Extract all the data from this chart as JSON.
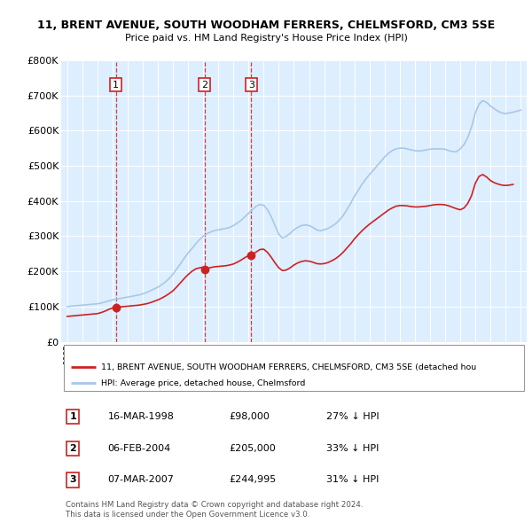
{
  "title": "11, BRENT AVENUE, SOUTH WOODHAM FERRERS, CHELMSFORD, CM3 5SE",
  "subtitle": "Price paid vs. HM Land Registry's House Price Index (HPI)",
  "sales": [
    {
      "label": "1",
      "date": 1998.21,
      "price": 98000,
      "text_date": "16-MAR-1998",
      "text_price": "£98,000",
      "text_hpi": "27% ↓ HPI"
    },
    {
      "label": "2",
      "date": 2004.09,
      "price": 205000,
      "text_date": "06-FEB-2004",
      "text_price": "£205,000",
      "text_hpi": "33% ↓ HPI"
    },
    {
      "label": "3",
      "date": 2007.18,
      "price": 244995,
      "text_date": "07-MAR-2007",
      "text_price": "£244,995",
      "text_hpi": "31% ↓ HPI"
    }
  ],
  "hpi_line_color": "#a8c8e8",
  "price_line_color": "#cc2222",
  "vline_color": "#cc2222",
  "bg_color": "#ddeeff",
  "legend_label_red": "11, BRENT AVENUE, SOUTH WOODHAM FERRERS, CHELMSFORD, CM3 5SE (detached hou",
  "legend_label_blue": "HPI: Average price, detached house, Chelmsford",
  "footer1": "Contains HM Land Registry data © Crown copyright and database right 2024.",
  "footer2": "This data is licensed under the Open Government Licence v3.0.",
  "ylim": [
    0,
    800000
  ],
  "yticks": [
    0,
    100000,
    200000,
    300000,
    400000,
    500000,
    600000,
    700000,
    800000
  ],
  "hpi_x": [
    1995,
    1995.25,
    1995.5,
    1995.75,
    1996,
    1996.25,
    1996.5,
    1996.75,
    1997,
    1997.25,
    1997.5,
    1997.75,
    1998,
    1998.25,
    1998.5,
    1998.75,
    1999,
    1999.25,
    1999.5,
    1999.75,
    2000,
    2000.25,
    2000.5,
    2000.75,
    2001,
    2001.25,
    2001.5,
    2001.75,
    2002,
    2002.25,
    2002.5,
    2002.75,
    2003,
    2003.25,
    2003.5,
    2003.75,
    2004,
    2004.25,
    2004.5,
    2004.75,
    2005,
    2005.25,
    2005.5,
    2005.75,
    2006,
    2006.25,
    2006.5,
    2006.75,
    2007,
    2007.25,
    2007.5,
    2007.75,
    2008,
    2008.25,
    2008.5,
    2008.75,
    2009,
    2009.25,
    2009.5,
    2009.75,
    2010,
    2010.25,
    2010.5,
    2010.75,
    2011,
    2011.25,
    2011.5,
    2011.75,
    2012,
    2012.25,
    2012.5,
    2012.75,
    2013,
    2013.25,
    2013.5,
    2013.75,
    2014,
    2014.25,
    2014.5,
    2014.75,
    2015,
    2015.25,
    2015.5,
    2015.75,
    2016,
    2016.25,
    2016.5,
    2016.75,
    2017,
    2017.25,
    2017.5,
    2017.75,
    2018,
    2018.25,
    2018.5,
    2018.75,
    2019,
    2019.25,
    2019.5,
    2019.75,
    2020,
    2020.25,
    2020.5,
    2020.75,
    2021,
    2021.25,
    2021.5,
    2021.75,
    2022,
    2022.25,
    2022.5,
    2022.75,
    2023,
    2023.25,
    2023.5,
    2023.75,
    2024,
    2024.25,
    2024.5,
    2024.75,
    2025
  ],
  "hpi_y": [
    100000,
    101000,
    102000,
    103000,
    104000,
    105000,
    106000,
    107000,
    108000,
    110000,
    113000,
    116000,
    119000,
    121000,
    123000,
    125000,
    127000,
    129000,
    131000,
    133000,
    136000,
    140000,
    145000,
    150000,
    155000,
    162000,
    170000,
    180000,
    192000,
    207000,
    222000,
    238000,
    252000,
    265000,
    278000,
    290000,
    300000,
    307000,
    312000,
    316000,
    318000,
    320000,
    322000,
    325000,
    330000,
    337000,
    345000,
    355000,
    365000,
    375000,
    385000,
    390000,
    388000,
    375000,
    355000,
    330000,
    305000,
    295000,
    300000,
    308000,
    318000,
    325000,
    330000,
    332000,
    330000,
    325000,
    318000,
    315000,
    318000,
    322000,
    328000,
    335000,
    345000,
    358000,
    375000,
    393000,
    413000,
    430000,
    447000,
    462000,
    475000,
    487000,
    500000,
    512000,
    525000,
    535000,
    543000,
    548000,
    550000,
    550000,
    548000,
    545000,
    543000,
    542000,
    543000,
    545000,
    547000,
    548000,
    548000,
    548000,
    547000,
    543000,
    540000,
    540000,
    548000,
    560000,
    580000,
    610000,
    650000,
    675000,
    685000,
    680000,
    670000,
    662000,
    655000,
    650000,
    648000,
    650000,
    652000,
    655000,
    658000
  ],
  "red_x": [
    1995,
    1995.25,
    1995.5,
    1995.75,
    1996,
    1996.25,
    1996.5,
    1996.75,
    1997,
    1997.25,
    1997.5,
    1997.75,
    1998,
    1998.21,
    1998.21,
    1998.5,
    1998.75,
    1999,
    1999.25,
    1999.5,
    1999.75,
    2000,
    2000.25,
    2000.5,
    2000.75,
    2001,
    2001.25,
    2001.5,
    2001.75,
    2002,
    2002.25,
    2002.5,
    2002.75,
    2003,
    2003.25,
    2003.5,
    2003.75,
    2004,
    2004.09,
    2004.09,
    2004.25,
    2004.5,
    2004.75,
    2005,
    2005.25,
    2005.5,
    2005.75,
    2006,
    2006.25,
    2006.5,
    2006.75,
    2007,
    2007.18,
    2007.18,
    2007.25,
    2007.5,
    2007.75,
    2008,
    2008.25,
    2008.5,
    2008.75,
    2009,
    2009.25,
    2009.5,
    2009.75,
    2010,
    2010.25,
    2010.5,
    2010.75,
    2011,
    2011.25,
    2011.5,
    2011.75,
    2012,
    2012.25,
    2012.5,
    2012.75,
    2013,
    2013.25,
    2013.5,
    2013.75,
    2014,
    2014.25,
    2014.5,
    2014.75,
    2015,
    2015.25,
    2015.5,
    2015.75,
    2016,
    2016.25,
    2016.5,
    2016.75,
    2017,
    2017.25,
    2017.5,
    2017.75,
    2018,
    2018.25,
    2018.5,
    2018.75,
    2019,
    2019.25,
    2019.5,
    2019.75,
    2020,
    2020.25,
    2020.5,
    2020.75,
    2021,
    2021.25,
    2021.5,
    2021.75,
    2022,
    2022.25,
    2022.5,
    2022.75,
    2023,
    2023.25,
    2023.5,
    2023.75,
    2024,
    2024.25,
    2024.5
  ],
  "red_y": [
    72000,
    73000,
    74000,
    75000,
    76000,
    77000,
    78000,
    79000,
    80000,
    83000,
    87000,
    92000,
    96000,
    98000,
    98000,
    99000,
    100000,
    101000,
    102000,
    103000,
    104000,
    106000,
    108000,
    111000,
    115000,
    119000,
    124000,
    130000,
    137000,
    145000,
    156000,
    168000,
    180000,
    191000,
    200000,
    207000,
    210000,
    212000,
    205000,
    205000,
    208000,
    211000,
    213000,
    214000,
    215000,
    216000,
    218000,
    221000,
    226000,
    232000,
    239000,
    245000,
    244995,
    244995,
    248000,
    255000,
    262000,
    263000,
    254000,
    240000,
    224000,
    210000,
    202000,
    204000,
    210000,
    218000,
    224000,
    228000,
    230000,
    229000,
    226000,
    222000,
    221000,
    222000,
    225000,
    230000,
    236000,
    244000,
    254000,
    266000,
    278000,
    292000,
    304000,
    315000,
    325000,
    334000,
    342000,
    350000,
    358000,
    366000,
    374000,
    380000,
    385000,
    387000,
    387000,
    386000,
    384000,
    383000,
    383000,
    384000,
    385000,
    387000,
    389000,
    390000,
    390000,
    389000,
    386000,
    382000,
    378000,
    375000,
    380000,
    393000,
    415000,
    450000,
    470000,
    475000,
    468000,
    458000,
    452000,
    448000,
    445000,
    444000,
    445000,
    447000
  ]
}
